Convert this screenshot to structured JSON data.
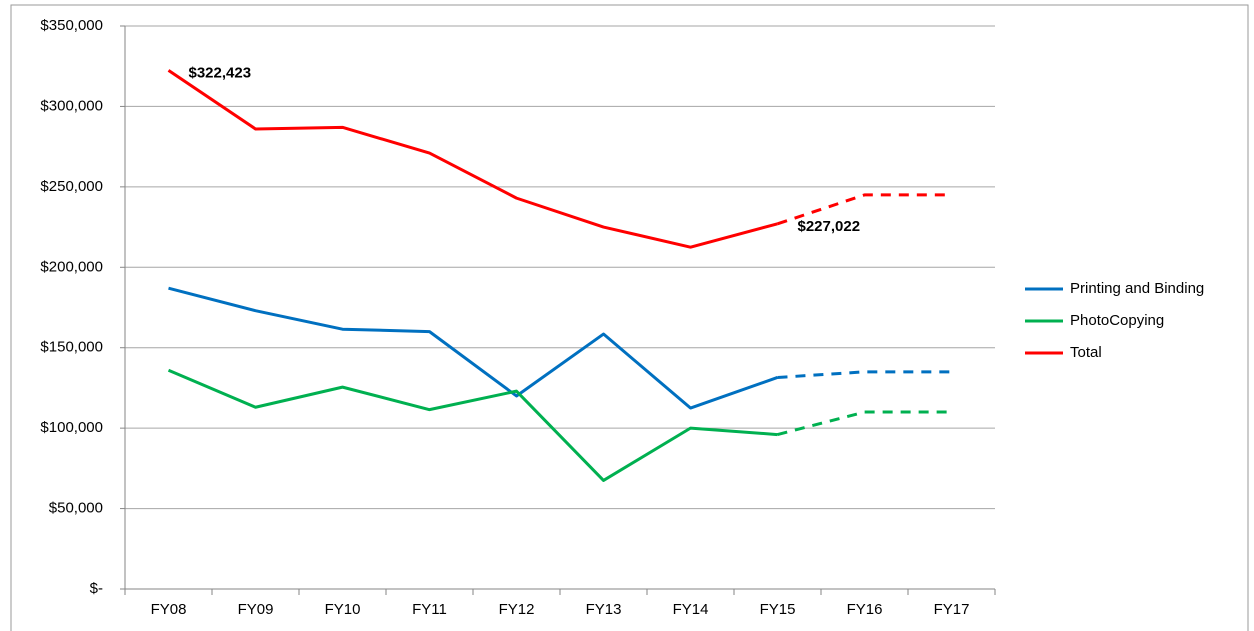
{
  "chart_data": {
    "type": "line",
    "categories": [
      "FY08",
      "FY09",
      "FY10",
      "FY11",
      "FY12",
      "FY13",
      "FY14",
      "FY15",
      "FY16",
      "FY17"
    ],
    "dashed_after": "FY15",
    "series": [
      {
        "name": "Printing and Binding",
        "color": "#0070c0",
        "values": [
          187000,
          173000,
          161500,
          160000,
          120000,
          158500,
          112500,
          131500,
          135000,
          135000
        ]
      },
      {
        "name": "PhotoCopying",
        "color": "#00b050",
        "values": [
          136000,
          113000,
          125500,
          111500,
          123000,
          67500,
          100000,
          96000,
          110000,
          110000
        ]
      },
      {
        "name": "Total",
        "color": "#ff0000",
        "values": [
          322423,
          286000,
          287000,
          271000,
          243000,
          225000,
          212500,
          227022,
          245000,
          245000
        ],
        "value_labels": [
          "$322,423",
          null,
          null,
          null,
          null,
          null,
          null,
          "$227,022",
          null,
          null
        ]
      }
    ],
    "ylim": [
      0,
      350000
    ],
    "yticks": [
      {
        "value": 0,
        "label": "$-"
      },
      {
        "value": 50000,
        "label": "$50,000"
      },
      {
        "value": 100000,
        "label": "$100,000"
      },
      {
        "value": 150000,
        "label": "$150,000"
      },
      {
        "value": 200000,
        "label": "$200,000"
      },
      {
        "value": 250000,
        "label": "$250,000"
      },
      {
        "value": 300000,
        "label": "$300,000"
      },
      {
        "value": 350000,
        "label": "$350,000"
      }
    ],
    "grid": true,
    "legend": "right"
  }
}
